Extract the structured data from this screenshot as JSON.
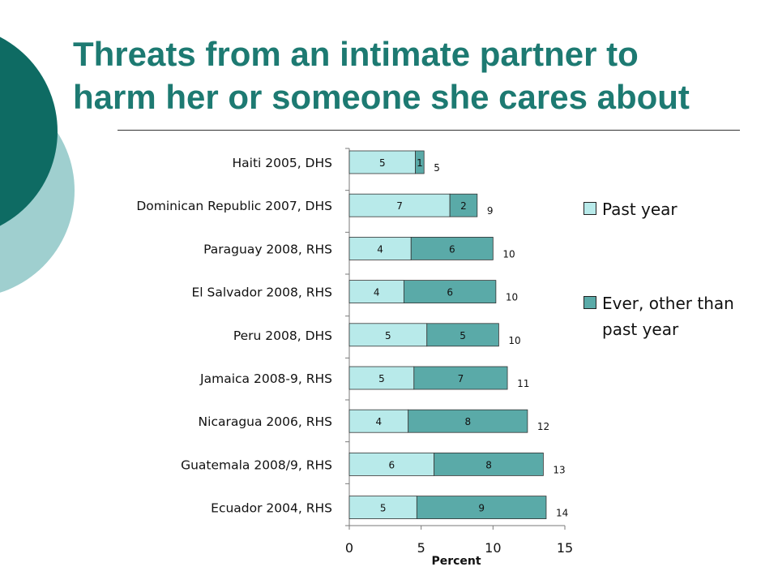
{
  "title_line1": "Threats from an intimate partner to",
  "title_line2": "harm her or someone she cares about",
  "colors": {
    "title": "#1d7a72",
    "deco_dark": "#0e6b63",
    "deco_light": "#9fcfcf",
    "past_year": "#b8eaea",
    "ever": "#5aaaa8",
    "bar_border": "#333333"
  },
  "legend": {
    "past_year": "Past year",
    "ever": "Ever, other than past year"
  },
  "chart_data": {
    "type": "bar",
    "orientation": "horizontal",
    "stacked": true,
    "xlabel": "Percent",
    "xlim": [
      0,
      15
    ],
    "xticks": [
      0,
      5,
      10,
      15
    ],
    "categories": [
      "Haiti 2005, DHS",
      "Dominican Republic 2007, DHS",
      "Paraguay 2008, RHS",
      "El Salvador 2008, RHS",
      "Peru 2008, DHS",
      "Jamaica 2008-9, RHS",
      "Nicaragua 2006, RHS",
      "Guatemala 2008/9, RHS",
      "Ecuador 2004, RHS"
    ],
    "series": [
      {
        "name": "Past year",
        "values": [
          4.6,
          7.0,
          4.3,
          3.8,
          5.4,
          4.5,
          4.1,
          5.9,
          4.7
        ],
        "labels": [
          "5",
          "7",
          "4",
          "4",
          "5",
          "5",
          "4",
          "6",
          "5"
        ]
      },
      {
        "name": "Ever, other than past year",
        "values": [
          0.6,
          1.9,
          5.7,
          6.4,
          5.0,
          6.5,
          8.3,
          7.6,
          9.0
        ],
        "labels": [
          "1",
          "2",
          "6",
          "6",
          "5",
          "7",
          "8",
          "8",
          "9"
        ]
      }
    ],
    "totals": [
      "5",
      "9",
      "10",
      "10",
      "10",
      "11",
      "12",
      "13",
      "14"
    ],
    "grid": false,
    "legend_position": "right"
  }
}
